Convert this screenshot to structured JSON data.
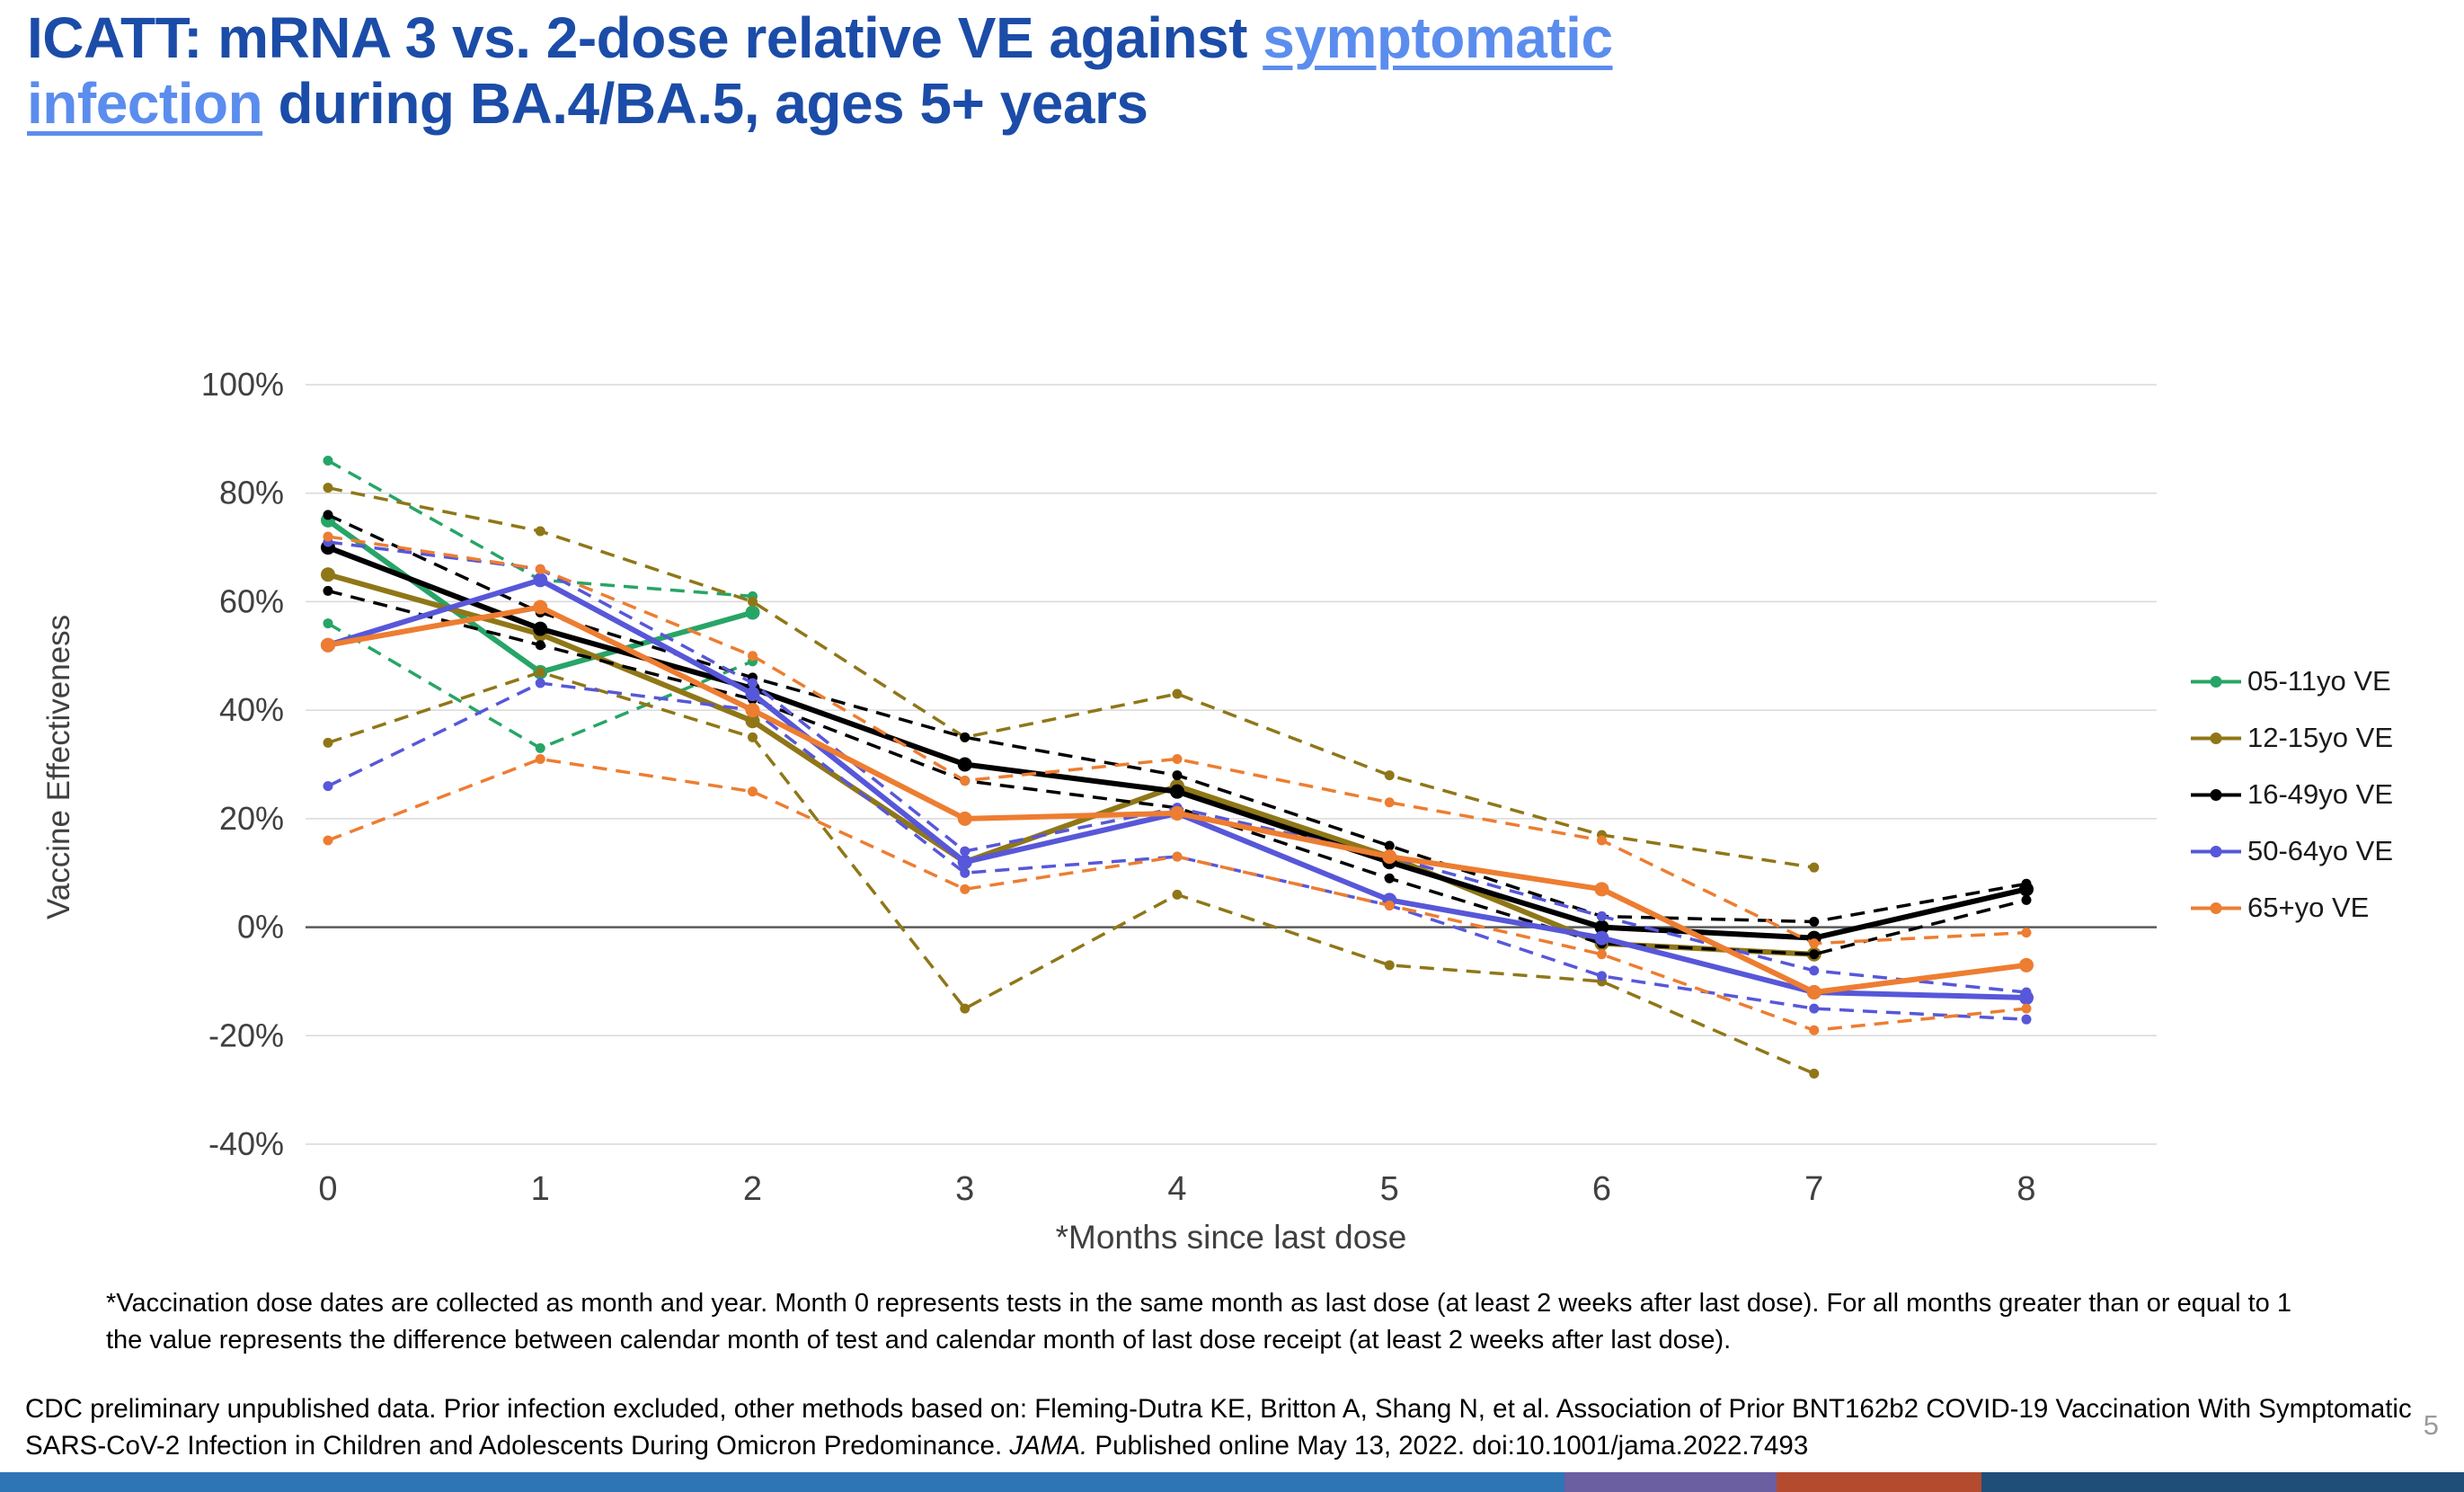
{
  "slide": {
    "title": {
      "line1_text": "ICATT: mRNA 3 vs. 2-dose relative VE against ",
      "line1_link": "symptomatic",
      "line2_link": "infection",
      "line2_text": " during BA.4/BA.5, ages 5+ years",
      "color": "#1b4ca8",
      "link_color": "#5b8dee"
    },
    "footnote": "*Vaccination dose dates are collected as month and year. Month 0 represents tests in the same month as last dose (at least 2 weeks after last dose).  For all months greater than or equal to 1 the value represents the difference between calendar month of test and calendar month of last dose receipt (at least 2 weeks after last dose).",
    "citation": {
      "before_italic": "CDC preliminary unpublished data. Prior infection excluded, other methods based on: Fleming-Dutra KE, Britton A, Shang N, et al. Association of Prior BNT162b2 COVID-19 Vaccination With Symptomatic SARS-CoV-2 Infection in Children and Adolescents During Omicron Predominance. ",
      "italic": "JAMA.",
      "after_italic": " Published online May 13, 2022. doi:10.1001/jama.2022.7493"
    },
    "page_number": "5",
    "footer_bar": [
      {
        "color": "#2e75b6",
        "width_pct": 63.5
      },
      {
        "color": "#6b5ea1",
        "width_pct": 8.6
      },
      {
        "color": "#b44b2f",
        "width_pct": 8.3
      },
      {
        "color": "#1f4e79",
        "width_pct": 19.6
      }
    ]
  },
  "chart_data": {
    "type": "line",
    "title": "",
    "xlabel": "*Months since last dose",
    "ylabel": "Vaccine Effectiveness",
    "x": [
      0,
      1,
      2,
      3,
      4,
      5,
      6,
      7,
      8
    ],
    "xtick_labels": [
      "0",
      "1",
      "2",
      "3",
      "4",
      "5",
      "6",
      "7",
      "8"
    ],
    "ytick_values": [
      100,
      80,
      60,
      40,
      20,
      0,
      -20,
      -40
    ],
    "ytick_labels": [
      "100%",
      "80%",
      "60%",
      "40%",
      "20%",
      "0%",
      "-20%",
      "-40%"
    ],
    "ylim": [
      -40,
      100
    ],
    "grid": true,
    "legend_position": "right",
    "series": [
      {
        "name": "05-11yo VE",
        "color": "#27a567",
        "central": [
          75,
          47,
          58,
          null,
          null,
          null,
          null,
          null,
          null
        ],
        "upper_ci": [
          86,
          64,
          61,
          null,
          null,
          null,
          null,
          null,
          null
        ],
        "lower_ci": [
          56,
          33,
          49,
          null,
          null,
          null,
          null,
          null,
          null
        ]
      },
      {
        "name": "12-15yo VE",
        "color": "#8f7718",
        "central": [
          65,
          54,
          38,
          12,
          26,
          13,
          -3,
          -5,
          null
        ],
        "upper_ci": [
          81,
          73,
          60,
          35,
          43,
          28,
          17,
          11,
          null
        ],
        "lower_ci": [
          34,
          47,
          35,
          -15,
          6,
          -7,
          -10,
          -27,
          null
        ]
      },
      {
        "name": "16-49yo VE",
        "color": "#000000",
        "central": [
          70,
          55,
          44,
          30,
          25,
          12,
          0,
          -2,
          7
        ],
        "upper_ci": [
          76,
          58,
          46,
          35,
          28,
          15,
          2,
          1,
          8
        ],
        "lower_ci": [
          62,
          52,
          42,
          27,
          22,
          9,
          -3,
          -5,
          5
        ]
      },
      {
        "name": "50-64yo VE",
        "color": "#5757d9",
        "central": [
          52,
          64,
          43,
          12,
          21,
          5,
          -2,
          -12,
          -13
        ],
        "upper_ci": [
          71,
          66,
          45,
          14,
          22,
          13,
          2,
          -8,
          -12
        ],
        "lower_ci": [
          26,
          45,
          40,
          10,
          13,
          4,
          -9,
          -15,
          -17
        ]
      },
      {
        "name": "65+yo VE",
        "color": "#ed7d31",
        "central": [
          52,
          59,
          40,
          20,
          21,
          13,
          7,
          -12,
          -7
        ],
        "upper_ci": [
          72,
          66,
          50,
          27,
          31,
          23,
          16,
          -3,
          -1
        ],
        "lower_ci": [
          16,
          31,
          25,
          7,
          13,
          4,
          -5,
          -19,
          -15
        ]
      }
    ]
  }
}
